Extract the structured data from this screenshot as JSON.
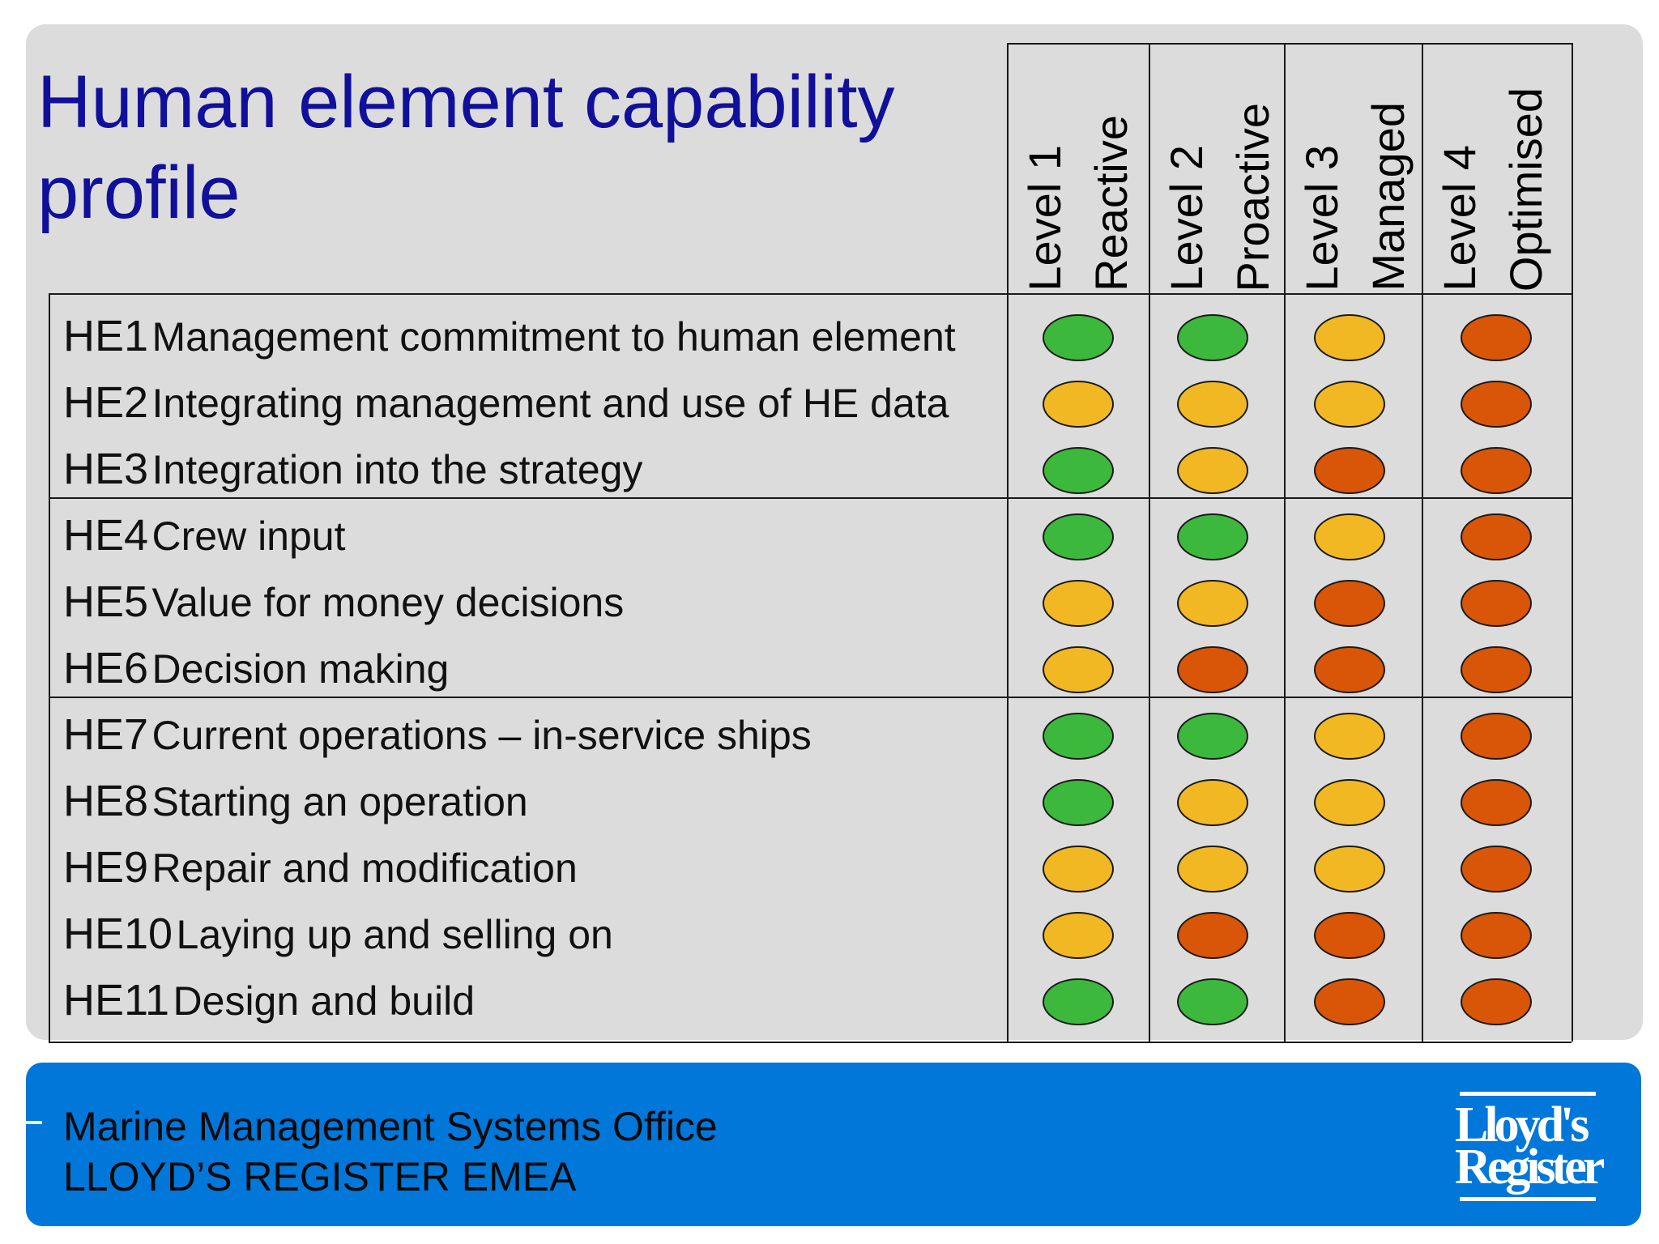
{
  "title": "Human element capability profile",
  "levels": [
    {
      "level": "Level 1",
      "name": "Reactive"
    },
    {
      "level": "Level 2",
      "name": "Proactive"
    },
    {
      "level": "Level 3",
      "name": "Managed"
    },
    {
      "level": "Level 4",
      "name": "Optimised"
    }
  ],
  "status_colors": {
    "green": "#3cb83c",
    "amber": "#f2b824",
    "orange": "#d95508"
  },
  "groups": [
    {
      "rows": [
        {
          "code": "HE1",
          "label": "Management commitment to human element",
          "ratings": [
            "green",
            "green",
            "amber",
            "orange"
          ]
        },
        {
          "code": "HE2",
          "label": "Integrating management and use of HE data",
          "ratings": [
            "amber",
            "amber",
            "amber",
            "orange"
          ]
        },
        {
          "code": "HE3",
          "label": "Integration into the strategy",
          "ratings": [
            "green",
            "amber",
            "orange",
            "orange"
          ]
        }
      ]
    },
    {
      "rows": [
        {
          "code": "HE4",
          "label": "Crew input",
          "ratings": [
            "green",
            "green",
            "amber",
            "orange"
          ]
        },
        {
          "code": "HE5",
          "label": "Value for money decisions",
          "ratings": [
            "amber",
            "amber",
            "orange",
            "orange"
          ]
        },
        {
          "code": "HE6",
          "label": "Decision making",
          "ratings": [
            "amber",
            "orange",
            "orange",
            "orange"
          ]
        }
      ]
    },
    {
      "rows": [
        {
          "code": "HE7",
          "label": "Current operations – in-service ships",
          "ratings": [
            "green",
            "green",
            "amber",
            "orange"
          ]
        },
        {
          "code": "HE8",
          "label": "Starting an operation",
          "ratings": [
            "green",
            "amber",
            "amber",
            "orange"
          ]
        },
        {
          "code": "HE9",
          "label": "Repair and modification",
          "ratings": [
            "amber",
            "amber",
            "amber",
            "orange"
          ]
        },
        {
          "code": "HE10",
          "label": "Laying up and selling on",
          "ratings": [
            "amber",
            "orange",
            "orange",
            "orange"
          ]
        },
        {
          "code": "HE11",
          "label": "Design and build",
          "ratings": [
            "green",
            "green",
            "orange",
            "orange"
          ]
        }
      ]
    }
  ],
  "footer": {
    "line1": "Marine Management Systems Office",
    "line2": "LLOYD’S REGISTER EMEA",
    "logo_line1": "Lloyd's",
    "logo_line2": "Register"
  }
}
